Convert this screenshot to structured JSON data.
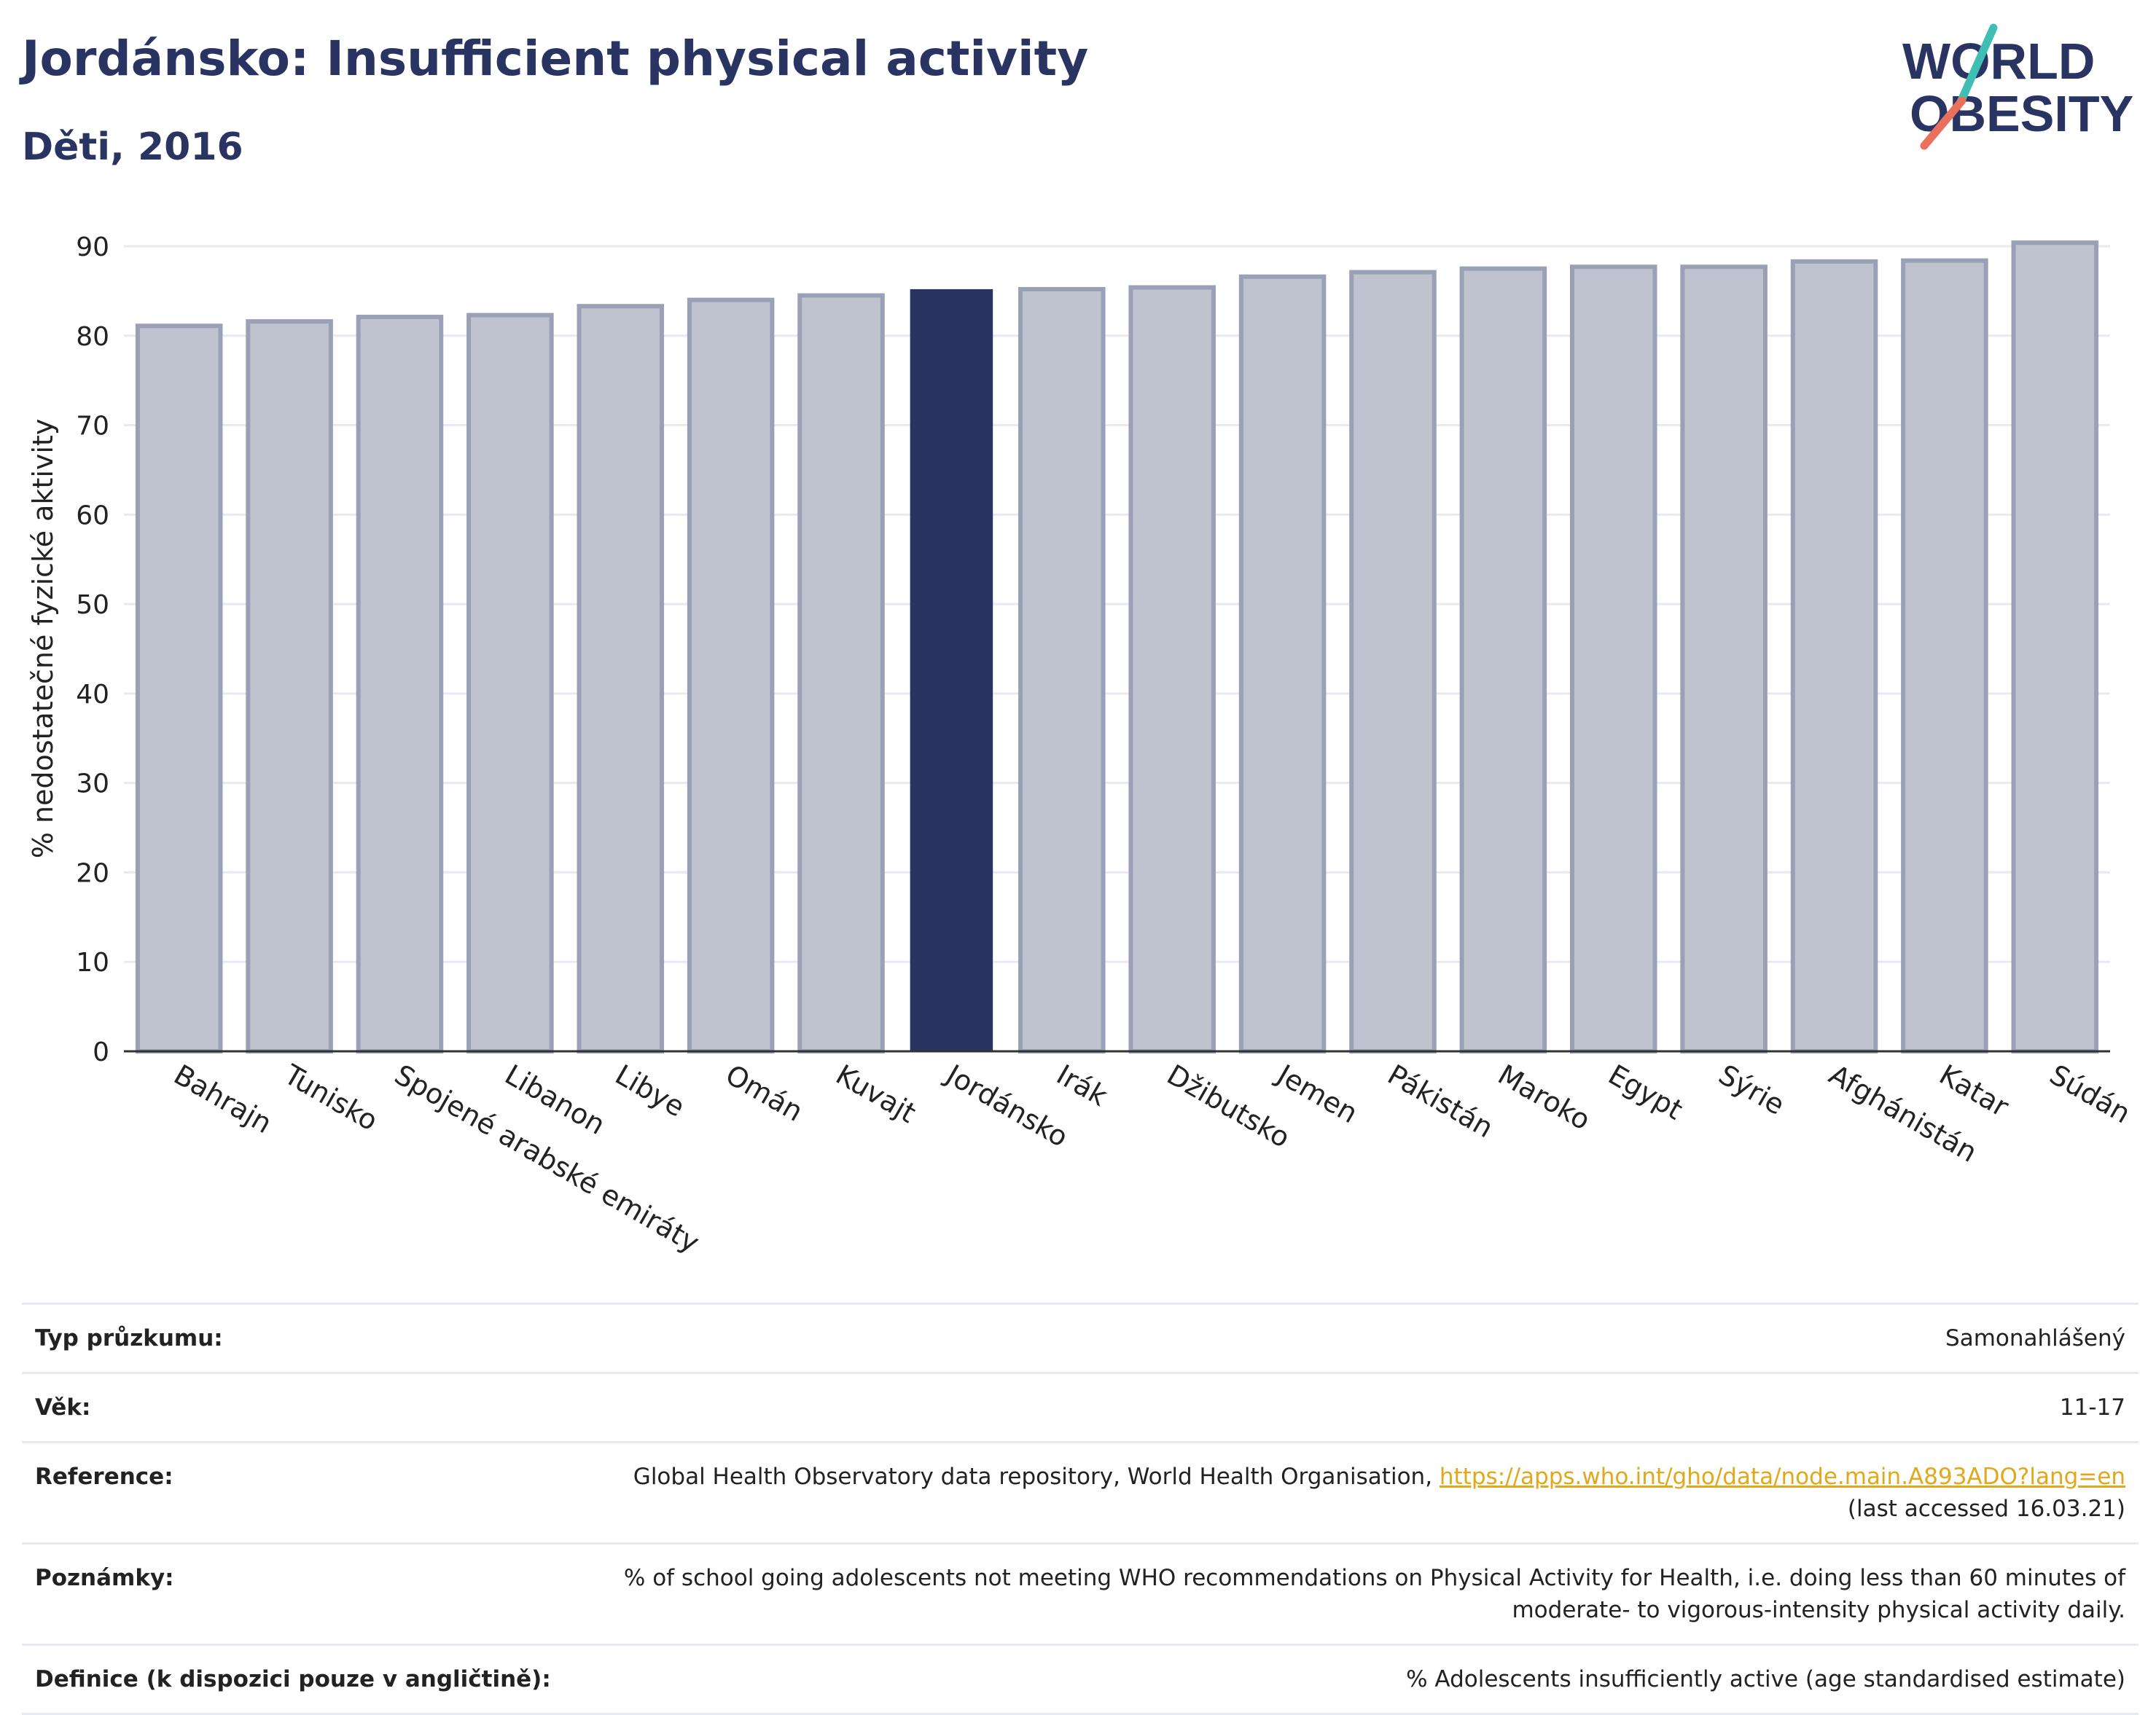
{
  "header": {
    "title": "Jordánsko: Insufficient physical activity",
    "subtitle": "Děti, 2016"
  },
  "logo": {
    "line1": "WORLD",
    "line2": "OBESITY",
    "colors": {
      "navy": "#2a3462",
      "teal": "#3fbfb3",
      "coral": "#e9705b"
    }
  },
  "colors": {
    "bar": "#bfc2cf",
    "bar_border": "#9aa0b6",
    "highlight": "#2a3462",
    "grid": "#e8eaf0"
  },
  "chart_data": {
    "type": "bar",
    "categories": [
      "Bahrajn",
      "Tunisko",
      "Spojené arabské emiráty",
      "Libanon",
      "Libye",
      "Omán",
      "Kuvajt",
      "Jordánsko",
      "Irák",
      "Džibutsko",
      "Jemen",
      "Pákistán",
      "Maroko",
      "Egypt",
      "Sýrie",
      "Afghánistán",
      "Katar",
      "Súdán"
    ],
    "values": [
      81.1,
      81.6,
      82.1,
      82.3,
      83.3,
      84.0,
      84.5,
      85.2,
      85.2,
      85.4,
      86.6,
      87.1,
      87.5,
      87.7,
      87.7,
      88.3,
      88.4,
      90.4
    ],
    "highlight": "Jordánsko",
    "xlabel": "",
    "ylabel": "% nedostatečné fyzické aktivity",
    "ylim": [
      0,
      90
    ],
    "yticks": [
      0,
      10,
      20,
      30,
      40,
      50,
      60,
      70,
      80,
      90
    ],
    "grid": true
  },
  "meta": [
    {
      "label": "Typ průzkumu:",
      "value": "Samonahlášený"
    },
    {
      "label": "Věk:",
      "value": "11-17"
    },
    {
      "label": "Reference:",
      "value": "Global Health Observatory data repository, World Health Organisation,",
      "link": "https://apps.who.int/gho/data/node.main.A893ADO?lang=en",
      "extra": "(last accessed 16.03.21)"
    },
    {
      "label": "Poznámky:",
      "value": "% of school going adolescents not meeting WHO recommendations on Physical Activity for Health, i.e. doing less than 60 minutes of moderate- to vigorous-intensity physical activity daily."
    },
    {
      "label": "Definice (k dispozici pouze v angličtině):",
      "value": "% Adolescents insufficiently active (age standardised estimate)"
    }
  ]
}
